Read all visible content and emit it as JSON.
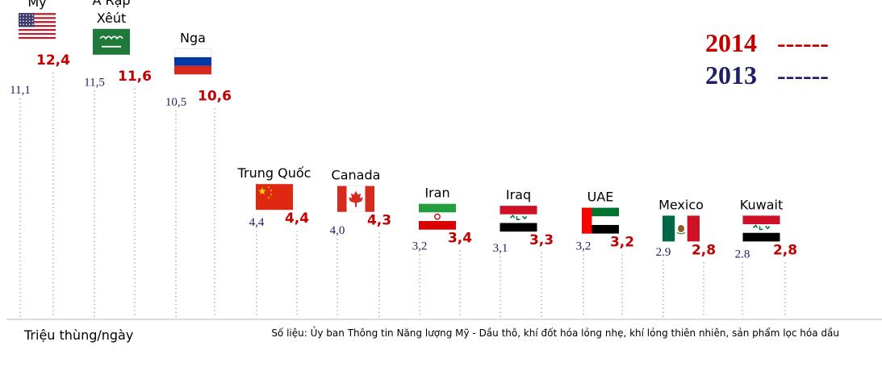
{
  "chart_data": {
    "type": "bar",
    "unit_label": "Triệu thùng/ngày",
    "source": "Số liệu: Ủy ban Thông tin Năng lượng Mỹ - Dầu thô, khí đốt hóa lỏng nhẹ, khí lỏng thiên nhiên, sản phẩm lọc hóa dầu",
    "legend": [
      {
        "label": "2014",
        "line": "------",
        "color": "#c00000"
      },
      {
        "label": "2013",
        "line": "------",
        "color": "#1f1f66"
      }
    ],
    "ylim": [
      0,
      13
    ],
    "countries": [
      {
        "name_lines": [
          "Mỹ"
        ],
        "flag": "usa-flag",
        "v2013_label": "11,1",
        "v2014_label": "12,4",
        "v2013": 11.1,
        "v2014": 12.4
      },
      {
        "name_lines": [
          "Ả Rập",
          "Xêút"
        ],
        "flag": "saudi-flag",
        "v2013_label": "11,5",
        "v2014_label": "11,6",
        "v2013": 11.5,
        "v2014": 11.6
      },
      {
        "name_lines": [
          "Nga"
        ],
        "flag": "russia-flag",
        "v2013_label": "10,5",
        "v2014_label": "10,6",
        "v2013": 10.5,
        "v2014": 10.6
      },
      {
        "name_lines": [
          "Trung Quốc"
        ],
        "flag": "china-flag",
        "v2013_label": "4,4",
        "v2014_label": "4,4",
        "v2013": 4.4,
        "v2014": 4.4
      },
      {
        "name_lines": [
          "Canada"
        ],
        "flag": "canada-flag",
        "v2013_label": "4,0",
        "v2014_label": "4,3",
        "v2013": 4.0,
        "v2014": 4.3
      },
      {
        "name_lines": [
          "Iran"
        ],
        "flag": "iran-flag",
        "v2013_label": "3,2",
        "v2014_label": "3,4",
        "v2013": 3.2,
        "v2014": 3.4
      },
      {
        "name_lines": [
          "Iraq"
        ],
        "flag": "iraq-flag",
        "v2013_label": "3,1",
        "v2014_label": "3,3",
        "v2013": 3.1,
        "v2014": 3.3
      },
      {
        "name_lines": [
          "UAE"
        ],
        "flag": "uae-flag",
        "v2013_label": "3,2",
        "v2014_label": "3,2",
        "v2013": 3.2,
        "v2014": 3.2
      },
      {
        "name_lines": [
          "Mexico"
        ],
        "flag": "mexico-flag",
        "v2013_label": "2.9",
        "v2014_label": "2,8",
        "v2013": 2.9,
        "v2014": 2.8
      },
      {
        "name_lines": [
          "Kuwait"
        ],
        "flag": "kuwait-flag",
        "v2013_label": "2.8",
        "v2014_label": "2,8",
        "v2013": 2.8,
        "v2014": 2.8
      }
    ]
  }
}
